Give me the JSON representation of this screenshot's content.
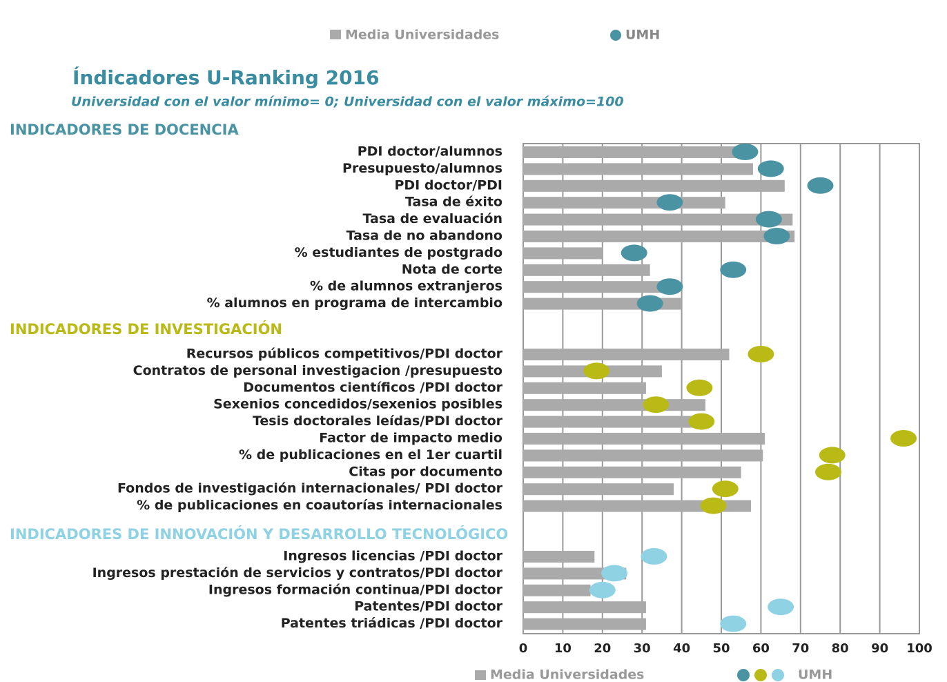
{
  "chart_data": {
    "type": "bar",
    "title": "Índicadores U-Ranking 2016",
    "subtitle": "Universidad con el valor mínimo= 0; Universidad con el valor máximo=100",
    "xlim": [
      0,
      100
    ],
    "xticks": [
      0,
      10,
      20,
      30,
      40,
      50,
      60,
      70,
      80,
      90,
      100
    ],
    "grid": true,
    "groups": [
      {
        "name": "INDICADORES  DE DOCENCIA",
        "color": "#4a93a3",
        "categories": [
          "PDI doctor/alumnos",
          "Presupuesto/alumnos",
          "PDI doctor/PDI",
          "Tasa de éxito",
          "Tasa de evaluación",
          "Tasa de no abandono",
          "% estudiantes de postgrado",
          "Nota de corte",
          "% de alumnos extranjeros",
          "% alumnos en programa de intercambio"
        ],
        "series": [
          {
            "name": "Media Universidades",
            "color": "#aaaaaa",
            "values": [
              55,
              58,
              66,
              51,
              68,
              68.5,
              20,
              32,
              35,
              40
            ]
          },
          {
            "name": "UMH",
            "color": "#4a93a3",
            "values": [
              56,
              62.5,
              75,
              37,
              62,
              64,
              28,
              53,
              37,
              32
            ]
          }
        ]
      },
      {
        "name": "INDICADORES  DE INVESTIGACIÓN",
        "color": "#b9ba16",
        "categories": [
          "Recursos públicos competitivos/PDI doctor",
          "Contratos de personal investigacion /presupuesto",
          "Documentos científicos /PDI doctor",
          "Sexenios concedidos/sexenios posibles",
          "Tesis doctorales leídas/PDI doctor",
          "Factor de impacto medio",
          "% de publicaciones en el 1er cuartil",
          "Citas por documento",
          "Fondos de investigación internacionales/ PDI doctor",
          "% de publicaciones en coautorías internacionales"
        ],
        "series": [
          {
            "name": "Media Universidades",
            "color": "#aaaaaa",
            "values": [
              52,
              35,
              31,
              46,
              44,
              61,
              60.5,
              55,
              38,
              57.5
            ]
          },
          {
            "name": "UMH",
            "color": "#b9ba16",
            "values": [
              60,
              18.5,
              44.5,
              33.5,
              45,
              96,
              78,
              77,
              51,
              48
            ]
          }
        ]
      },
      {
        "name": "INDICADORES  DE INNOVACIÓN Y DESARROLLO TECNOLÓGICO",
        "color": "#8fd2e3",
        "categories": [
          "Ingresos licencias /PDI doctor",
          "Ingresos prestación de servicios y contratos/PDI doctor",
          "Ingresos  formación continua/PDI doctor",
          "Patentes/PDI doctor",
          "Patentes triádicas /PDI doctor"
        ],
        "series": [
          {
            "name": "Media Universidades",
            "color": "#aaaaaa",
            "values": [
              18,
              26,
              17,
              31,
              31
            ]
          },
          {
            "name": "UMH",
            "color": "#8fd2e3",
            "values": [
              33,
              23,
              20,
              65,
              53
            ]
          }
        ]
      }
    ]
  }
}
